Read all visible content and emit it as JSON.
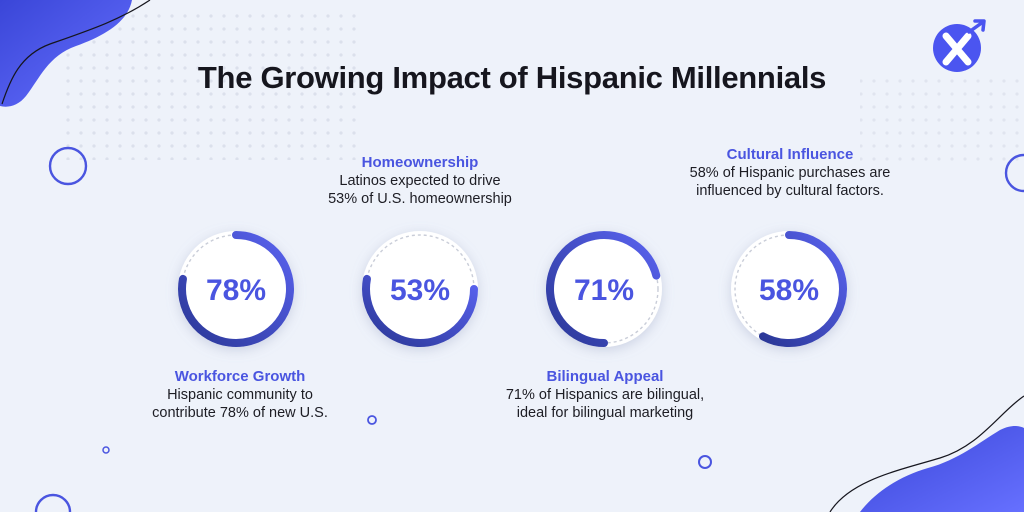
{
  "chart_data": {
    "type": "pie",
    "title": "The Growing Impact of Hispanic Millennials",
    "series": [
      {
        "name": "Workforce Growth",
        "value": 78,
        "label": "78%",
        "description": "Hispanic community to contribute 78% of new U.S."
      },
      {
        "name": "Homeownership",
        "value": 53,
        "label": "53%",
        "description": "Latinos expected to drive 53% of U.S. homeownership"
      },
      {
        "name": "Bilingual Appeal",
        "value": 71,
        "label": "71%",
        "description": "71% of Hispanics are bilingual, ideal for bilingual marketing"
      },
      {
        "name": "Cultural Influence",
        "value": 58,
        "label": "58%",
        "description": "58% of Hispanic purchases are influenced by cultural factors."
      }
    ]
  },
  "text": {
    "workforce_line1": "Hispanic community to",
    "workforce_line2": "contribute 78% of new U.S.",
    "home_line1": "Latinos expected to drive",
    "home_line2": "53% of U.S. homeownership",
    "bilingual_line1": "71% of Hispanics are bilingual,",
    "bilingual_line2": "ideal for bilingual marketing",
    "cultural_line1": "58% of Hispanic purchases are",
    "cultural_line2": "influenced by cultural factors."
  },
  "colors": {
    "accent": "#4a55e0",
    "ring_dark": "#2a3796",
    "ring_light": "#5a63f0",
    "background": "#eef2fa",
    "blob": "#4b55f0"
  },
  "logo": {
    "icon": "x-arrow-logo-icon"
  }
}
